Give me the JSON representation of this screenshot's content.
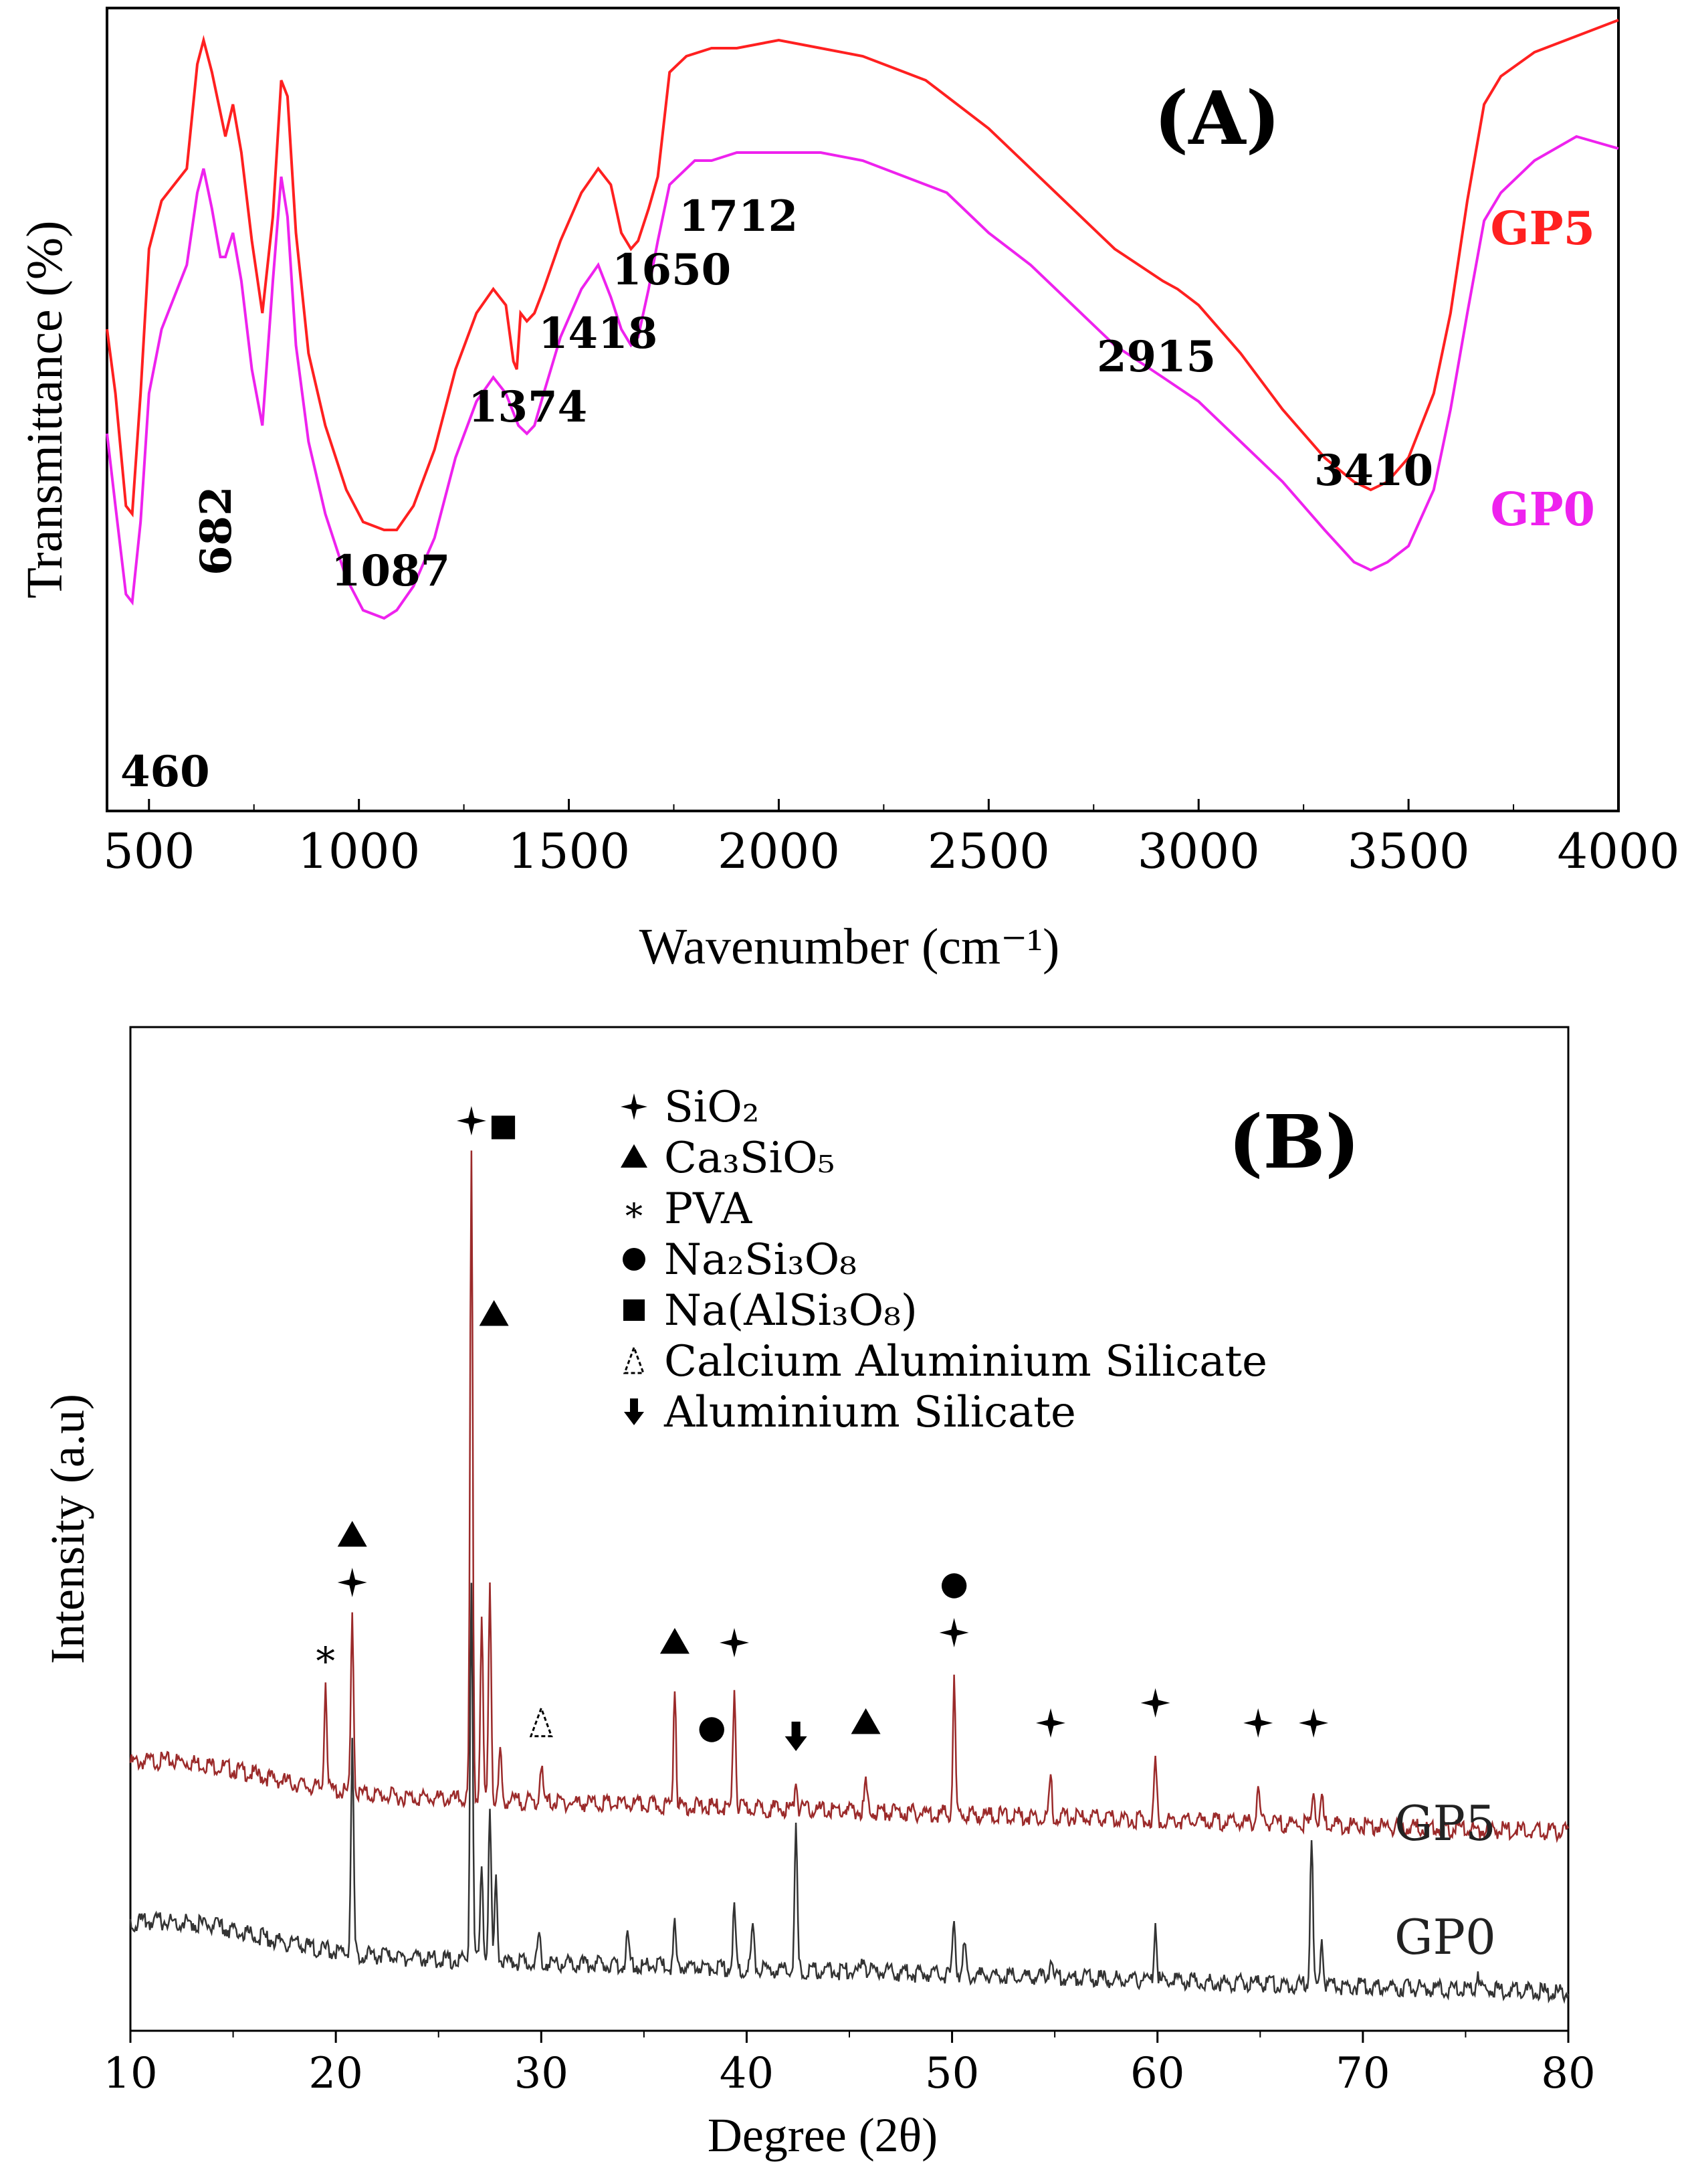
{
  "chart_data": [
    {
      "panel": "(A)",
      "type": "line",
      "title": "",
      "xlabel": "Wavenumber (cm⁻¹)",
      "ylabel": "Transmittance (%)",
      "xlim": [
        400,
        4000
      ],
      "ylim": [
        0,
        100
      ],
      "x_ticks": [
        500,
        1000,
        1500,
        2000,
        2500,
        3000,
        3500,
        4000
      ],
      "x_tick_labels": [
        "500",
        "1000",
        "1500",
        "2000",
        "2500",
        "3000",
        "3500",
        "4000"
      ],
      "series": [
        {
          "name": "GP5",
          "color": "#ff2020",
          "points": [
            [
              400,
              60
            ],
            [
              420,
              52
            ],
            [
              445,
              38
            ],
            [
              460,
              37
            ],
            [
              480,
              52
            ],
            [
              500,
              70
            ],
            [
              530,
              76
            ],
            [
              560,
              78
            ],
            [
              590,
              80
            ],
            [
              615,
              93
            ],
            [
              630,
              96
            ],
            [
              650,
              92
            ],
            [
              670,
              87
            ],
            [
              682,
              84
            ],
            [
              700,
              88
            ],
            [
              720,
              82
            ],
            [
              745,
              71
            ],
            [
              770,
              62
            ],
            [
              795,
              74
            ],
            [
              815,
              91
            ],
            [
              830,
              89
            ],
            [
              850,
              72
            ],
            [
              880,
              57
            ],
            [
              920,
              48
            ],
            [
              970,
              40
            ],
            [
              1010,
              36
            ],
            [
              1060,
              35
            ],
            [
              1090,
              35
            ],
            [
              1130,
              38
            ],
            [
              1180,
              45
            ],
            [
              1230,
              55
            ],
            [
              1280,
              62
            ],
            [
              1320,
              65
            ],
            [
              1350,
              63
            ],
            [
              1368,
              56
            ],
            [
              1376,
              55
            ],
            [
              1385,
              62
            ],
            [
              1400,
              61
            ],
            [
              1418,
              62
            ],
            [
              1440,
              65
            ],
            [
              1480,
              71
            ],
            [
              1530,
              77
            ],
            [
              1570,
              80
            ],
            [
              1600,
              78
            ],
            [
              1625,
              72
            ],
            [
              1648,
              70
            ],
            [
              1665,
              71
            ],
            [
              1690,
              75
            ],
            [
              1712,
              79
            ],
            [
              1740,
              92
            ],
            [
              1780,
              94
            ],
            [
              1840,
              95
            ],
            [
              1900,
              95
            ],
            [
              2000,
              96
            ],
            [
              2100,
              95
            ],
            [
              2200,
              94
            ],
            [
              2300,
              92
            ],
            [
              2350,
              91
            ],
            [
              2400,
              89
            ],
            [
              2500,
              85
            ],
            [
              2600,
              80
            ],
            [
              2700,
              75
            ],
            [
              2800,
              70
            ],
            [
              2915,
              66
            ],
            [
              2950,
              65
            ],
            [
              3000,
              63
            ],
            [
              3100,
              57
            ],
            [
              3200,
              50
            ],
            [
              3300,
              44
            ],
            [
              3370,
              41
            ],
            [
              3410,
              40
            ],
            [
              3450,
              41
            ],
            [
              3500,
              44
            ],
            [
              3560,
              52
            ],
            [
              3600,
              62
            ],
            [
              3640,
              76
            ],
            [
              3680,
              87
            ],
            [
              3720,
              93
            ],
            [
              3800,
              95
            ],
            [
              3900,
              96
            ],
            [
              4000,
              97
            ]
          ]
        },
        {
          "name": "GP0",
          "color": "#ee22ee",
          "points": [
            [
              400,
              47
            ],
            [
              420,
              38
            ],
            [
              445,
              27
            ],
            [
              460,
              26
            ],
            [
              480,
              36
            ],
            [
              500,
              52
            ],
            [
              530,
              60
            ],
            [
              560,
              64
            ],
            [
              590,
              68
            ],
            [
              615,
              77
            ],
            [
              630,
              80
            ],
            [
              650,
              75
            ],
            [
              670,
              69
            ],
            [
              682,
              69
            ],
            [
              700,
              72
            ],
            [
              720,
              66
            ],
            [
              745,
              55
            ],
            [
              770,
              48
            ],
            [
              795,
              66
            ],
            [
              815,
              79
            ],
            [
              830,
              74
            ],
            [
              850,
              58
            ],
            [
              880,
              46
            ],
            [
              920,
              37
            ],
            [
              970,
              29
            ],
            [
              1010,
              25
            ],
            [
              1060,
              24
            ],
            [
              1090,
              25
            ],
            [
              1130,
              28
            ],
            [
              1180,
              34
            ],
            [
              1230,
              44
            ],
            [
              1280,
              51
            ],
            [
              1320,
              54
            ],
            [
              1350,
              52
            ],
            [
              1380,
              48
            ],
            [
              1400,
              47
            ],
            [
              1418,
              48
            ],
            [
              1440,
              52
            ],
            [
              1480,
              59
            ],
            [
              1530,
              65
            ],
            [
              1570,
              68
            ],
            [
              1600,
              64
            ],
            [
              1625,
              60
            ],
            [
              1648,
              58
            ],
            [
              1665,
              59
            ],
            [
              1690,
              65
            ],
            [
              1712,
              71
            ],
            [
              1740,
              78
            ],
            [
              1800,
              81
            ],
            [
              1840,
              81
            ],
            [
              1900,
              82
            ],
            [
              2000,
              82
            ],
            [
              2100,
              82
            ],
            [
              2200,
              81
            ],
            [
              2300,
              79
            ],
            [
              2350,
              78
            ],
            [
              2400,
              77
            ],
            [
              2500,
              72
            ],
            [
              2600,
              68
            ],
            [
              2700,
              63
            ],
            [
              2800,
              58
            ],
            [
              2915,
              54
            ],
            [
              3000,
              51
            ],
            [
              3100,
              46
            ],
            [
              3200,
              41
            ],
            [
              3300,
              35
            ],
            [
              3370,
              31
            ],
            [
              3410,
              30
            ],
            [
              3450,
              31
            ],
            [
              3500,
              33
            ],
            [
              3560,
              40
            ],
            [
              3600,
              50
            ],
            [
              3640,
              62
            ],
            [
              3680,
              72
            ],
            [
              3720,
              78
            ],
            [
              3800,
              81
            ],
            [
              3900,
              83
            ],
            [
              4000,
              84
            ]
          ]
        }
      ],
      "series_labels": [
        "GP5",
        "GP0"
      ],
      "panel_label": "(A)",
      "annotations": [
        "460",
        "682",
        "1087",
        "1374",
        "1418",
        "1650",
        "1712",
        "2915",
        "3410"
      ]
    },
    {
      "panel": "(B)",
      "type": "line",
      "title": "",
      "xlabel": "Degree (2θ)",
      "ylabel": "Intensity (a.u)",
      "xlim": [
        10,
        80
      ],
      "ylim": [
        0,
        100
      ],
      "x_ticks": [
        10,
        20,
        30,
        40,
        50,
        60,
        70,
        80
      ],
      "x_tick_labels": [
        "10",
        "20",
        "30",
        "40",
        "50",
        "60",
        "70",
        "80"
      ],
      "series": [
        {
          "name": "GP5",
          "color": "#9b2a2a",
          "baseline": 24,
          "peaks": [
            [
              19.5,
              11
            ],
            [
              20.8,
              18
            ],
            [
              26.6,
              64
            ],
            [
              27.1,
              18
            ],
            [
              27.5,
              22
            ],
            [
              28.0,
              5
            ],
            [
              30.0,
              4
            ],
            [
              36.5,
              12
            ],
            [
              39.4,
              12
            ],
            [
              42.4,
              3
            ],
            [
              45.8,
              3
            ],
            [
              50.1,
              13
            ],
            [
              54.8,
              4
            ],
            [
              59.9,
              6
            ],
            [
              64.9,
              4
            ],
            [
              67.6,
              4
            ],
            [
              68.0,
              3
            ]
          ]
        },
        {
          "name": "GP0",
          "color": "#333333",
          "baseline": 8,
          "peaks": [
            [
              20.8,
              21
            ],
            [
              26.6,
              38
            ],
            [
              27.1,
              10
            ],
            [
              27.5,
              15
            ],
            [
              27.8,
              8
            ],
            [
              29.9,
              3
            ],
            [
              34.2,
              3
            ],
            [
              36.5,
              4
            ],
            [
              39.4,
              6
            ],
            [
              40.3,
              4
            ],
            [
              42.4,
              14
            ],
            [
              45.7,
              2
            ],
            [
              50.1,
              6
            ],
            [
              50.6,
              3
            ],
            [
              54.8,
              2
            ],
            [
              59.9,
              6
            ],
            [
              67.5,
              15
            ],
            [
              68.0,
              5
            ],
            [
              75.6,
              2
            ]
          ]
        }
      ],
      "series_labels": [
        "GP5",
        "GP0"
      ],
      "panel_label": "(B)",
      "legend": [
        {
          "marker": "star4",
          "label": "SiO₂"
        },
        {
          "marker": "triangle",
          "label": "Ca₃SiO₅"
        },
        {
          "marker": "asterisk",
          "label": "PVA"
        },
        {
          "marker": "circle",
          "label": "Na₂Si₃O₈"
        },
        {
          "marker": "square",
          "label": "Na(AlSi₃O₈)"
        },
        {
          "marker": "dashed-triangle",
          "label": "Calcium Aluminium Silicate"
        },
        {
          "marker": "arrow-down",
          "label": "Aluminium Silicate"
        }
      ],
      "peak_markers": [
        {
          "x": 19.5,
          "markers": [
            "asterisk"
          ]
        },
        {
          "x": 20.8,
          "markers": [
            "star4",
            "triangle"
          ]
        },
        {
          "x": 26.6,
          "markers": [
            "star4"
          ]
        },
        {
          "x": 27.5,
          "markers": [
            "square"
          ]
        },
        {
          "x": 27.7,
          "markers": [
            "triangle"
          ]
        },
        {
          "x": 30.0,
          "markers": [
            "dashed-triangle"
          ]
        },
        {
          "x": 36.5,
          "markers": [
            "triangle"
          ]
        },
        {
          "x": 38.3,
          "markers": [
            "circle"
          ]
        },
        {
          "x": 39.4,
          "markers": [
            "star4"
          ]
        },
        {
          "x": 42.4,
          "markers": [
            "arrow-down"
          ]
        },
        {
          "x": 45.8,
          "markers": [
            "triangle"
          ]
        },
        {
          "x": 50.1,
          "markers": [
            "star4",
            "circle"
          ]
        },
        {
          "x": 54.8,
          "markers": [
            "star4"
          ]
        },
        {
          "x": 59.9,
          "markers": [
            "star4"
          ]
        },
        {
          "x": 64.9,
          "markers": [
            "star4"
          ]
        },
        {
          "x": 67.6,
          "markers": [
            "star4"
          ]
        }
      ]
    }
  ]
}
